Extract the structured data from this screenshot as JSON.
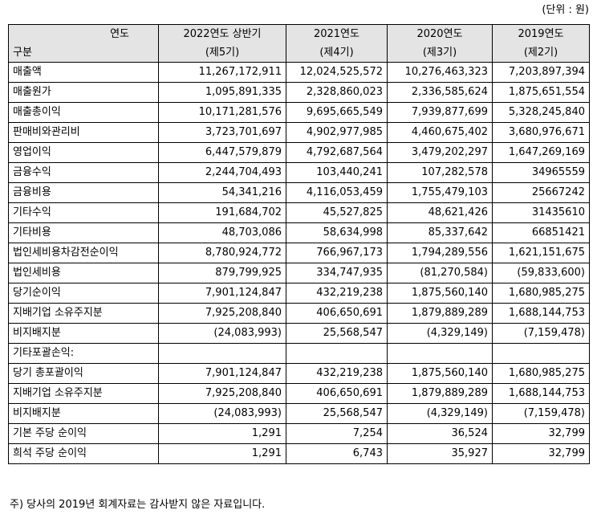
{
  "unit_note": "(단위 : 원)",
  "header": {
    "corner_top": "연도",
    "corner_bottom": "구분",
    "periods": [
      {
        "year": "2022연도 상반기",
        "term": "(제5기)"
      },
      {
        "year": "2021연도",
        "term": "(제4기)"
      },
      {
        "year": "2020연도",
        "term": "(제3기)"
      },
      {
        "year": "2019연도",
        "term": "(제2기)"
      }
    ]
  },
  "rows": [
    {
      "label": "매출액",
      "values": [
        "11,267,172,911",
        "12,024,525,572",
        "10,276,463,323",
        "7,203,897,394"
      ]
    },
    {
      "label": "매출원가",
      "values": [
        "1,095,891,335",
        "2,328,860,023",
        "2,336,585,624",
        "1,875,651,554"
      ]
    },
    {
      "label": "매출총이익",
      "values": [
        "10,171,281,576",
        "9,695,665,549",
        "7,939,877,699",
        "5,328,245,840"
      ]
    },
    {
      "label": "판매비와관리비",
      "values": [
        "3,723,701,697",
        "4,902,977,985",
        "4,460,675,402",
        "3,680,976,671"
      ]
    },
    {
      "label": "영업이익",
      "values": [
        "6,447,579,879",
        "4,792,687,564",
        "3,479,202,297",
        "1,647,269,169"
      ]
    },
    {
      "label": "금융수익",
      "values": [
        "2,244,704,493",
        "103,440,241",
        "107,282,578",
        "34965559"
      ]
    },
    {
      "label": "금융비용",
      "values": [
        "54,341,216",
        "4,116,053,459",
        "1,755,479,103",
        "25667242"
      ]
    },
    {
      "label": "기타수익",
      "values": [
        "191,684,702",
        "45,527,825",
        "48,621,426",
        "31435610"
      ]
    },
    {
      "label": "기타비용",
      "values": [
        "48,703,086",
        "58,634,998",
        "85,337,642",
        "66851421"
      ]
    },
    {
      "label": "법인세비용차감전순이익",
      "values": [
        "8,780,924,772",
        "766,967,173",
        "1,794,289,556",
        "1,621,151,675"
      ]
    },
    {
      "label": "법인세비용",
      "values": [
        "879,799,925",
        "334,747,935",
        "(81,270,584)",
        "(59,833,600)"
      ]
    },
    {
      "label": "당기순이익",
      "values": [
        "7,901,124,847",
        "432,219,238",
        "1,875,560,140",
        "1,680,985,275"
      ]
    },
    {
      "label": "지배기업 소유주지분",
      "values": [
        "7,925,208,840",
        "406,650,691",
        "1,879,889,289",
        "1,688,144,753"
      ]
    },
    {
      "label": "비지배지분",
      "values": [
        "(24,083,993)",
        "25,568,547",
        "(4,329,149)",
        "(7,159,478)"
      ]
    },
    {
      "label": "기타포괄손익:",
      "values": [
        "",
        "",
        "",
        ""
      ]
    },
    {
      "label": "당기 총포괄이익",
      "values": [
        "7,901,124,847",
        "432,219,238",
        "1,875,560,140",
        "1,680,985,275"
      ]
    },
    {
      "label": "지배기업 소유주지분",
      "values": [
        "7,925,208,840",
        "406,650,691",
        "1,879,889,289",
        "1,688,144,753"
      ]
    },
    {
      "label": "비지배지분",
      "values": [
        "(24,083,993)",
        "25,568,547",
        "(4,329,149)",
        "(7,159,478)"
      ]
    },
    {
      "label": "기본 주당 순이익",
      "values": [
        "1,291",
        "7,254",
        "36,524",
        "32,799"
      ]
    },
    {
      "label": "희석 주당 순이익",
      "values": [
        "1,291",
        "6,743",
        "35,927",
        "32,799"
      ]
    }
  ],
  "footnote": "주)  당사의 2019년 회계자료는 감사받지 않은 자료입니다."
}
